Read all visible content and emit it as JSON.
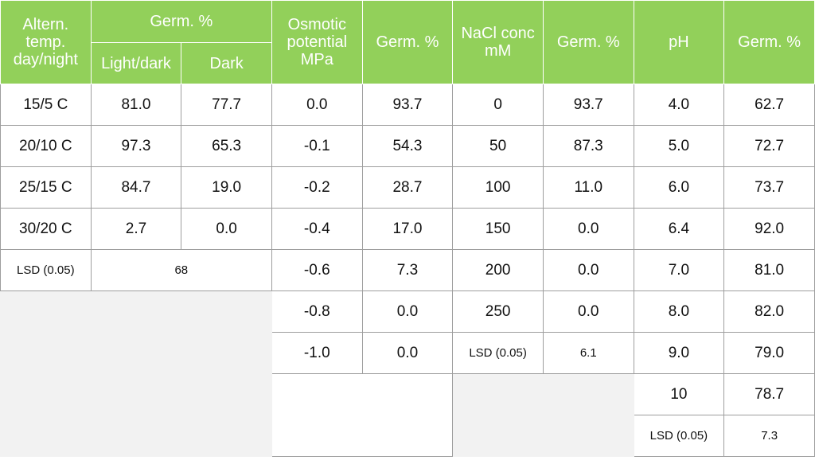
{
  "headers": {
    "alt_temp": "Altern. temp. day/night",
    "germ_pct": "Germ. %",
    "light_dark": "Light/dark",
    "dark": "Dark",
    "osmotic": "Osmotic potential MPa",
    "germ_pct_osm": "Germ. %",
    "nacl": "NaCl conc mM",
    "germ_pct_nacl": "Germ. %",
    "ph": "pH",
    "germ_pct_ph": "Germ. %"
  },
  "temp_rows": [
    {
      "temp": "15/5 C",
      "light_dark": "81.0",
      "dark": "77.7"
    },
    {
      "temp": "20/10 C",
      "light_dark": "97.3",
      "dark": "65.3"
    },
    {
      "temp": "25/15 C",
      "light_dark": "84.7",
      "dark": "19.0"
    },
    {
      "temp": "30/20 C",
      "light_dark": "2.7",
      "dark": "0.0"
    }
  ],
  "temp_lsd": {
    "label": "LSD (0.05)",
    "value": "68"
  },
  "osmotic_rows": [
    {
      "potential": "0.0",
      "germ": "93.7"
    },
    {
      "potential": "-0.1",
      "germ": "54.3"
    },
    {
      "potential": "-0.2",
      "germ": "28.7"
    },
    {
      "potential": "-0.4",
      "germ": "17.0"
    },
    {
      "potential": "-0.6",
      "germ": "7.3"
    },
    {
      "potential": "-0.8",
      "germ": "0.0"
    },
    {
      "potential": "-1.0",
      "germ": "0.0"
    }
  ],
  "nacl_rows": [
    {
      "conc": "0",
      "germ": "93.7"
    },
    {
      "conc": "50",
      "germ": "87.3"
    },
    {
      "conc": "100",
      "germ": "11.0"
    },
    {
      "conc": "150",
      "germ": "0.0"
    },
    {
      "conc": "200",
      "germ": "0.0"
    },
    {
      "conc": "250",
      "germ": "0.0"
    }
  ],
  "nacl_lsd": {
    "label": "LSD (0.05)",
    "value": "6.1"
  },
  "ph_rows": [
    {
      "ph": "4.0",
      "germ": "62.7"
    },
    {
      "ph": "5.0",
      "germ": "72.7"
    },
    {
      "ph": "6.0",
      "germ": "73.7"
    },
    {
      "ph": "6.4",
      "germ": "92.0"
    },
    {
      "ph": "7.0",
      "germ": "81.0"
    },
    {
      "ph": "8.0",
      "germ": "82.0"
    },
    {
      "ph": "9.0",
      "germ": "79.0"
    },
    {
      "ph": "10",
      "germ": "78.7"
    }
  ],
  "ph_lsd": {
    "label": "LSD (0.05)",
    "value": "7.3"
  },
  "colors": {
    "header_bg": "#92d05a",
    "header_text": "#ffffff",
    "blank_bg": "#f2f2f2"
  }
}
